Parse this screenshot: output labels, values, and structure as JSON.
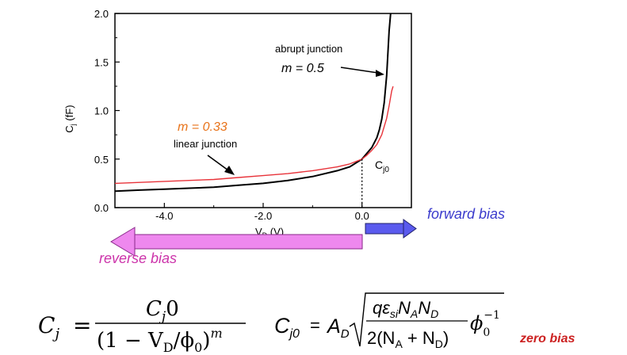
{
  "chart_data": {
    "type": "line",
    "xlabel": "V_D (V)",
    "ylabel": "C_j (fF)",
    "xlim": [
      -5.0,
      1.0
    ],
    "ylim": [
      0.0,
      2.0
    ],
    "x_ticks": [
      "-4.0",
      "-2.0",
      "0.0"
    ],
    "x_tick_values": [
      -4.0,
      -2.0,
      0.0
    ],
    "y_ticks": [
      "0.0",
      "0.5",
      "1.0",
      "1.5",
      "2.0"
    ],
    "y_tick_values": [
      0.0,
      0.5,
      1.0,
      1.5,
      2.0
    ],
    "series": [
      {
        "name": "abrupt junction",
        "color": "#000000",
        "x": [
          -5.0,
          -4.5,
          -4.0,
          -3.5,
          -3.0,
          -2.5,
          -2.0,
          -1.5,
          -1.0,
          -0.5,
          -0.25,
          0.0,
          0.1,
          0.2,
          0.3,
          0.35,
          0.4,
          0.45,
          0.5,
          0.55,
          0.58
        ],
        "y": [
          0.17,
          0.18,
          0.19,
          0.2,
          0.21,
          0.23,
          0.25,
          0.28,
          0.32,
          0.38,
          0.42,
          0.5,
          0.56,
          0.62,
          0.72,
          0.8,
          0.91,
          1.08,
          1.36,
          1.82,
          2.0
        ]
      },
      {
        "name": "linear junction",
        "color": "#e8333a",
        "x": [
          -5.0,
          -4.5,
          -4.0,
          -3.5,
          -3.0,
          -2.5,
          -2.0,
          -1.5,
          -1.0,
          -0.5,
          -0.25,
          0.0,
          0.1,
          0.2,
          0.3,
          0.4,
          0.5,
          0.55,
          0.6,
          0.63
        ],
        "y": [
          0.25,
          0.26,
          0.27,
          0.28,
          0.29,
          0.31,
          0.33,
          0.35,
          0.38,
          0.42,
          0.45,
          0.5,
          0.54,
          0.59,
          0.65,
          0.75,
          0.92,
          1.05,
          1.2,
          1.25
        ]
      }
    ],
    "reference_point": {
      "x": 0.0,
      "y": 0.5,
      "label": "C_j0"
    },
    "annotations": {
      "abrupt_title": "abrupt junction",
      "abrupt_m": "m = 0.5",
      "linear_m": "m = 0.33",
      "linear_title": "linear junction"
    },
    "bias_labels": {
      "forward": "forward bias",
      "forward_color": "#3a3acc",
      "forward_arrow_color": "#5a5aee",
      "reverse": "reverse bias",
      "reverse_color": "#cc33aa",
      "reverse_arrow_color": "#ee88ee"
    }
  },
  "equations": {
    "eq1_lhs": "C",
    "eq1_lhs_sub": "j",
    "eq1_equals": "=",
    "eq1_num": "C",
    "eq1_num_sub": "j",
    "eq1_num_tail": "0",
    "eq1_den_open": "(1 − V",
    "eq1_den_sub": "D",
    "eq1_den_mid": "/ϕ",
    "eq1_den_sub2": "0",
    "eq1_den_close": ")",
    "eq1_den_sup": "m",
    "eq2_lhs": "C",
    "eq2_lhs_sub": "j0",
    "eq2_equals": "=",
    "eq2_A": "A",
    "eq2_A_sub": "D",
    "eq2_num_q": "qε",
    "eq2_num_q_sub": "si",
    "eq2_num_N": "N",
    "eq2_num_N_sub": "A",
    "eq2_num_N2": "N",
    "eq2_num_N2_sub": "D",
    "eq2_den": "2(N",
    "eq2_den_sub": "A",
    "eq2_den_plus": " + N",
    "eq2_den_sub2": "D",
    "eq2_den_close": ")",
    "eq2_phi": "ϕ",
    "eq2_phi_sub": "0",
    "eq2_phi_sup": "−1",
    "zero_bias": "zero bias",
    "zero_bias_color": "#cc2222"
  }
}
